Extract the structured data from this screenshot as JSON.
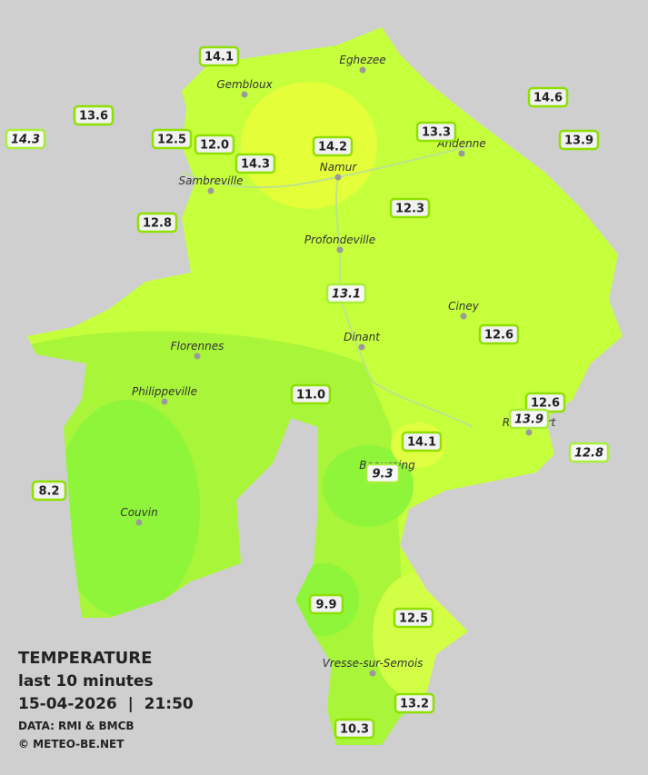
{
  "cities": [
    "Eghezee",
    "Gembloux",
    "Andenne",
    "Namur",
    "Sambreville",
    "Profondeville",
    "Ciney",
    "Dinant",
    "Florennes",
    "Philippeville",
    "Rochefort",
    "Beauraing",
    "Couvin",
    "Vresse-sur-Semois"
  ],
  "stations": [
    {
      "label": "14.1",
      "italic": false
    },
    {
      "label": "13.6",
      "italic": false
    },
    {
      "label": "14.3",
      "italic": true
    },
    {
      "label": "12.5",
      "italic": false
    },
    {
      "label": "12.0",
      "italic": false
    },
    {
      "label": "14.3",
      "italic": false
    },
    {
      "label": "14.2",
      "italic": false
    },
    {
      "label": "13.3",
      "italic": false
    },
    {
      "label": "14.6",
      "italic": false
    },
    {
      "label": "13.9",
      "italic": false
    },
    {
      "label": "12.8",
      "italic": false
    },
    {
      "label": "12.3",
      "italic": false
    },
    {
      "label": "13.1",
      "italic": true
    },
    {
      "label": "12.6",
      "italic": false
    },
    {
      "label": "11.0",
      "italic": false
    },
    {
      "label": "12.6",
      "italic": false
    },
    {
      "label": "13.9",
      "italic": true
    },
    {
      "label": "14.1",
      "italic": false
    },
    {
      "label": "12.8",
      "italic": true
    },
    {
      "label": "9.3",
      "italic": true
    },
    {
      "label": "8.2",
      "italic": false
    },
    {
      "label": "9.9",
      "italic": false
    },
    {
      "label": "12.5",
      "italic": false
    },
    {
      "label": "13.2",
      "italic": false
    },
    {
      "label": "10.3",
      "italic": false
    }
  ],
  "legend": {
    "title": "TEMPERATURE",
    "subtitle": "last 10 minutes",
    "timestamp": "15-04-2026  |  21:50",
    "source": "DATA: RMI & BMCB",
    "credit": "© METEO-BE.NET"
  }
}
